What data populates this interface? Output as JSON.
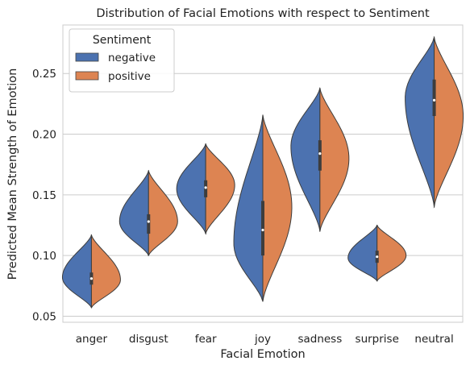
{
  "chart_data": {
    "type": "violin",
    "title": "Distribution of Facial Emotions with respect to Sentiment",
    "xlabel": "Facial Emotion",
    "ylabel": "Predicted Mean Strength of Emotion",
    "categories": [
      "anger",
      "disgust",
      "fear",
      "joy",
      "sadness",
      "surprise",
      "neutral"
    ],
    "ylim": [
      0.045,
      0.29
    ],
    "yticks": [
      0.05,
      0.1,
      0.15,
      0.2,
      0.25
    ],
    "ytick_labels": [
      "0.05",
      "0.10",
      "0.15",
      "0.20",
      "0.25"
    ],
    "grid": "horizontal",
    "split": true,
    "legend": {
      "title": "Sentiment",
      "placement": "top-left"
    },
    "series": [
      {
        "name": "negative",
        "color": "#4c72b0",
        "distributions": [
          {
            "min": 0.057,
            "max": 0.117,
            "mode": 0.082,
            "median": 0.081,
            "q1": 0.076,
            "q3": 0.086
          },
          {
            "min": 0.1,
            "max": 0.17,
            "mode": 0.128,
            "median": 0.128,
            "q1": 0.118,
            "q3": 0.134
          },
          {
            "min": 0.118,
            "max": 0.192,
            "mode": 0.155,
            "median": 0.156,
            "q1": 0.148,
            "q3": 0.162
          },
          {
            "min": 0.062,
            "max": 0.216,
            "mode": 0.11,
            "median": 0.121,
            "q1": 0.1,
            "q3": 0.145
          },
          {
            "min": 0.12,
            "max": 0.238,
            "mode": 0.19,
            "median": 0.184,
            "q1": 0.17,
            "q3": 0.195
          },
          {
            "min": 0.079,
            "max": 0.125,
            "mode": 0.098,
            "median": 0.099,
            "q1": 0.094,
            "q3": 0.104
          },
          {
            "min": 0.14,
            "max": 0.28,
            "mode": 0.23,
            "median": 0.228,
            "q1": 0.215,
            "q3": 0.245
          }
        ]
      },
      {
        "name": "positive",
        "color": "#dd8452",
        "distributions": [
          {
            "min": 0.057,
            "max": 0.117,
            "mode": 0.08,
            "median": 0.081,
            "q1": 0.076,
            "q3": 0.086
          },
          {
            "min": 0.1,
            "max": 0.17,
            "mode": 0.128,
            "median": 0.128,
            "q1": 0.118,
            "q3": 0.134
          },
          {
            "min": 0.118,
            "max": 0.192,
            "mode": 0.158,
            "median": 0.156,
            "q1": 0.148,
            "q3": 0.162
          },
          {
            "min": 0.062,
            "max": 0.216,
            "mode": 0.14,
            "median": 0.121,
            "q1": 0.1,
            "q3": 0.145
          },
          {
            "min": 0.12,
            "max": 0.238,
            "mode": 0.18,
            "median": 0.184,
            "q1": 0.17,
            "q3": 0.195
          },
          {
            "min": 0.079,
            "max": 0.125,
            "mode": 0.1,
            "median": 0.099,
            "q1": 0.094,
            "q3": 0.104
          },
          {
            "min": 0.14,
            "max": 0.28,
            "mode": 0.215,
            "median": 0.228,
            "q1": 0.215,
            "q3": 0.245
          }
        ]
      }
    ]
  }
}
